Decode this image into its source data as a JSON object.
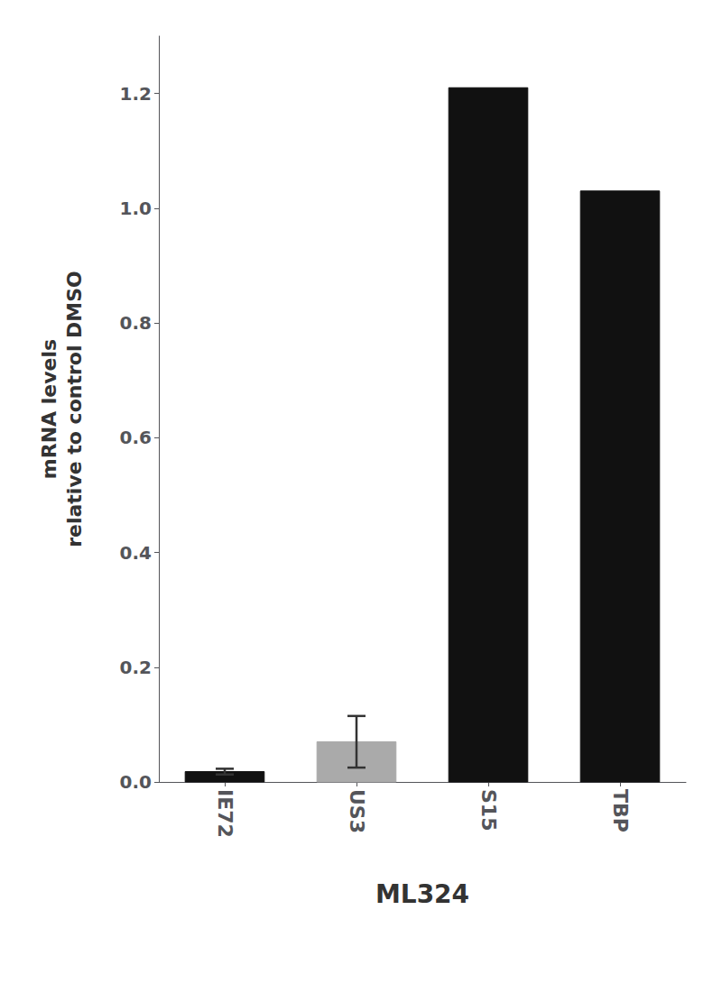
{
  "chart_data": {
    "type": "bar",
    "categories": [
      "IE72",
      "US3",
      "S15",
      "TBP"
    ],
    "values": [
      0.018,
      0.07,
      1.21,
      1.03
    ],
    "errors": [
      0.005,
      0.045,
      0.0,
      0.0
    ],
    "colors": [
      "#111111",
      "#aaaaaa",
      "#111111",
      "#111111"
    ],
    "ylabel": "mRNA levels\nrelative to control DMSO",
    "xlabel": "ML324",
    "ylim": [
      0,
      1.3
    ],
    "yticks": [
      {
        "value": 0,
        "label": "0.0"
      },
      0.2,
      0.4,
      0.6,
      0.8,
      {
        "value": 1,
        "label": "1.0"
      },
      1.2
    ],
    "grid": false
  }
}
